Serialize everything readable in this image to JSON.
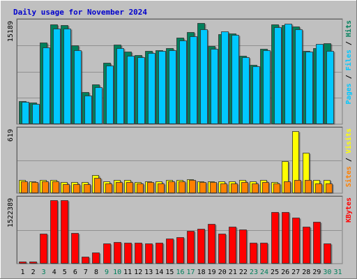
{
  "chart_data": [
    {
      "type": "bar",
      "title": "Daily usage for November 2024",
      "categories": [
        "1",
        "2",
        "3",
        "4",
        "5",
        "6",
        "7",
        "8",
        "9",
        "10",
        "11",
        "12",
        "13",
        "14",
        "15",
        "16",
        "17",
        "18",
        "19",
        "20",
        "21",
        "22",
        "23",
        "24",
        "25",
        "26",
        "27",
        "28",
        "29",
        "30",
        "31"
      ],
      "weekend_days": [
        "3",
        "9",
        "10",
        "16",
        "17",
        "23",
        "24",
        "30",
        "31"
      ],
      "max_label": "15189",
      "right_label": {
        "a": "Pages",
        "b": "Files",
        "c": "Hits",
        "sep": " / "
      },
      "series": [
        {
          "name": "Hits",
          "color": "#00805c",
          "values": [
            3500,
            3200,
            12300,
            15000,
            14900,
            11800,
            4800,
            6000,
            9200,
            11900,
            10900,
            10400,
            11000,
            11100,
            11400,
            13000,
            13800,
            15189,
            11700,
            13500,
            13600,
            10300,
            8900,
            11300,
            15000,
            14900,
            14700,
            11000,
            11400,
            12200,
            0
          ]
        },
        {
          "name": "Files",
          "color": "#00c8ff",
          "values": [
            3300,
            3000,
            11500,
            14300,
            14400,
            11100,
            4300,
            5500,
            8800,
            11400,
            10300,
            10100,
            10700,
            11000,
            11100,
            12600,
            13200,
            14200,
            11300,
            13900,
            13400,
            10100,
            8700,
            11100,
            14600,
            15100,
            14200,
            10900,
            12000,
            11000,
            0
          ]
        }
      ]
    },
    {
      "type": "bar",
      "max_label": "619",
      "right_label": {
        "a": "Sites",
        "b": "Visits",
        "sep": " / "
      },
      "series": [
        {
          "name": "Visits",
          "color": "#ffff00",
          "values": [
            130,
            120,
            130,
            130,
            110,
            110,
            110,
            180,
            120,
            130,
            130,
            110,
            120,
            120,
            130,
            130,
            140,
            120,
            120,
            120,
            120,
            130,
            120,
            130,
            110,
            320,
            619,
            400,
            130,
            130,
            0
          ]
        },
        {
          "name": "Sites",
          "color": "#ff8000",
          "values": [
            120,
            110,
            120,
            120,
            90,
            90,
            90,
            150,
            100,
            110,
            110,
            100,
            110,
            100,
            120,
            120,
            130,
            110,
            110,
            100,
            100,
            110,
            100,
            110,
            100,
            120,
            130,
            130,
            100,
            100,
            0
          ]
        }
      ]
    },
    {
      "type": "bar",
      "max_label": "1522389",
      "right_label": {
        "a": "KBytes"
      },
      "series": [
        {
          "name": "KBytes",
          "color": "#ff0000",
          "values": [
            42000,
            42000,
            720000,
            1522389,
            1522389,
            730000,
            170000,
            270000,
            480000,
            520000,
            510000,
            500000,
            480000,
            500000,
            600000,
            640000,
            780000,
            840000,
            950000,
            720000,
            880000,
            820000,
            500000,
            500000,
            1240000,
            1230000,
            1100000,
            880000,
            1000000,
            490000,
            0
          ]
        }
      ]
    }
  ],
  "colors": {
    "header_text": "#0000cc",
    "plot_bg": "#c0c0c0",
    "frame_bg": "#c0c0c0",
    "border_dark": "#808080",
    "weekday_label": "#000000",
    "weekend_label": "#00805c",
    "grid": "#909090",
    "hits": "#00805c",
    "files": "#00c8ff",
    "pages": "#00c8ff",
    "visits": "#ffff00",
    "sites": "#ff8000",
    "kbytes": "#ff0000"
  }
}
